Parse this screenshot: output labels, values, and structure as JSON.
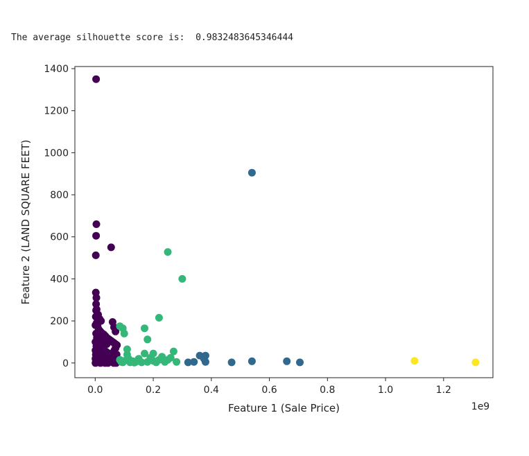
{
  "output": {
    "text": "The average silhouette score is:  0.9832483645346444"
  },
  "chart_data": {
    "type": "scatter",
    "title": "",
    "xlabel": "Feature 1 (Sale Price)",
    "ylabel": "Feature 2 (LAND SQUARE FEET)",
    "x_offset_label": "1e9",
    "xlim": [
      -0.07,
      1.37
    ],
    "ylim": [
      -70,
      1410
    ],
    "x_ticks": [
      0.0,
      0.2,
      0.4,
      0.6,
      0.8,
      1.0,
      1.2
    ],
    "x_tick_labels": [
      "0.0",
      "0.2",
      "0.4",
      "0.6",
      "0.8",
      "1.0",
      "1.2"
    ],
    "y_ticks": [
      0,
      200,
      400,
      600,
      800,
      1000,
      1200,
      1400
    ],
    "y_tick_labels": [
      "0",
      "200",
      "400",
      "600",
      "800",
      "1000",
      "1200",
      "1400"
    ],
    "grid": false,
    "clusters": [
      {
        "color": "#440154",
        "points": [
          [
            0.003,
            1350
          ],
          [
            0.004,
            660
          ],
          [
            0.003,
            605
          ],
          [
            0.002,
            512
          ],
          [
            0.055,
            550
          ],
          [
            0.002,
            335
          ],
          [
            0.004,
            310
          ],
          [
            0.003,
            280
          ],
          [
            0.005,
            255
          ],
          [
            0.01,
            230
          ],
          [
            0.015,
            210
          ],
          [
            0.02,
            200
          ],
          [
            0.06,
            195
          ],
          [
            0.065,
            170
          ],
          [
            0.07,
            150
          ],
          [
            0.005,
            190
          ],
          [
            0.008,
            175
          ],
          [
            0.012,
            160
          ],
          [
            0.018,
            150
          ],
          [
            0.025,
            140
          ],
          [
            0.03,
            135
          ],
          [
            0.035,
            128
          ],
          [
            0.04,
            120
          ],
          [
            0.045,
            115
          ],
          [
            0.05,
            110
          ],
          [
            0.055,
            105
          ],
          [
            0.06,
            100
          ],
          [
            0.065,
            95
          ],
          [
            0.07,
            90
          ],
          [
            0.075,
            85
          ],
          [
            0.003,
            140
          ],
          [
            0.006,
            120
          ],
          [
            0.009,
            110
          ],
          [
            0.013,
            100
          ],
          [
            0.017,
            90
          ],
          [
            0.021,
            80
          ],
          [
            0.026,
            70
          ],
          [
            0.031,
            60
          ],
          [
            0.036,
            55
          ],
          [
            0.041,
            50
          ],
          [
            0.046,
            45
          ],
          [
            0.051,
            40
          ],
          [
            0.056,
            35
          ],
          [
            0.061,
            30
          ],
          [
            0.066,
            25
          ],
          [
            0.071,
            20
          ],
          [
            0.004,
            80
          ],
          [
            0.008,
            70
          ],
          [
            0.012,
            60
          ],
          [
            0.016,
            50
          ],
          [
            0.02,
            40
          ],
          [
            0.024,
            30
          ],
          [
            0.028,
            20
          ],
          [
            0.032,
            15
          ],
          [
            0.036,
            10
          ],
          [
            0.04,
            5
          ],
          [
            0.044,
            0
          ],
          [
            0.048,
            5
          ],
          [
            0.052,
            10
          ],
          [
            0.056,
            15
          ],
          [
            0.06,
            5
          ],
          [
            0.064,
            0
          ],
          [
            0.068,
            5
          ],
          [
            0.072,
            0
          ],
          [
            0.002,
            40
          ],
          [
            0.005,
            30
          ],
          [
            0.007,
            20
          ],
          [
            0.01,
            10
          ],
          [
            0.014,
            5
          ],
          [
            0.018,
            0
          ],
          [
            0.022,
            2
          ],
          [
            0.026,
            8
          ],
          [
            0.03,
            3
          ],
          [
            0.034,
            0
          ],
          [
            0.038,
            12
          ],
          [
            0.042,
            18
          ],
          [
            0.046,
            25
          ],
          [
            0.05,
            30
          ],
          [
            0.054,
            22
          ],
          [
            0.058,
            45
          ],
          [
            0.062,
            50
          ],
          [
            0.066,
            60
          ],
          [
            0.07,
            70
          ],
          [
            0.074,
            40
          ],
          [
            0.078,
            10
          ],
          [
            0.001,
            0
          ],
          [
            0.001,
            20
          ],
          [
            0.001,
            60
          ],
          [
            0.001,
            100
          ],
          [
            0.001,
            180
          ],
          [
            0.002,
            220
          ],
          [
            0.003,
            250
          ],
          [
            0.04,
            90
          ],
          [
            0.03,
            100
          ],
          [
            0.02,
            120
          ]
        ]
      },
      {
        "color": "#31688e",
        "points": [
          [
            0.54,
            905
          ],
          [
            0.36,
            35
          ],
          [
            0.38,
            35
          ],
          [
            0.375,
            20
          ],
          [
            0.34,
            5
          ],
          [
            0.32,
            3
          ],
          [
            0.38,
            5
          ],
          [
            0.47,
            3
          ],
          [
            0.54,
            8
          ],
          [
            0.66,
            8
          ],
          [
            0.705,
            3
          ]
        ]
      },
      {
        "color": "#35b779",
        "points": [
          [
            0.25,
            528
          ],
          [
            0.3,
            400
          ],
          [
            0.22,
            215
          ],
          [
            0.085,
            175
          ],
          [
            0.095,
            165
          ],
          [
            0.17,
            165
          ],
          [
            0.1,
            140
          ],
          [
            0.18,
            112
          ],
          [
            0.2,
            45
          ],
          [
            0.17,
            45
          ],
          [
            0.11,
            65
          ],
          [
            0.11,
            40
          ],
          [
            0.27,
            55
          ],
          [
            0.23,
            30
          ],
          [
            0.25,
            15
          ],
          [
            0.28,
            5
          ],
          [
            0.24,
            5
          ],
          [
            0.22,
            15
          ],
          [
            0.2,
            10
          ],
          [
            0.18,
            5
          ],
          [
            0.16,
            3
          ],
          [
            0.14,
            5
          ],
          [
            0.13,
            8
          ],
          [
            0.12,
            3
          ],
          [
            0.1,
            10
          ],
          [
            0.09,
            5
          ],
          [
            0.085,
            15
          ],
          [
            0.15,
            20
          ],
          [
            0.19,
            25
          ],
          [
            0.21,
            3
          ],
          [
            0.26,
            25
          ],
          [
            0.115,
            20
          ],
          [
            0.135,
            2
          ],
          [
            0.095,
            3
          ]
        ]
      },
      {
        "color": "#fde725",
        "points": [
          [
            1.1,
            10
          ],
          [
            1.31,
            3
          ]
        ]
      }
    ]
  }
}
